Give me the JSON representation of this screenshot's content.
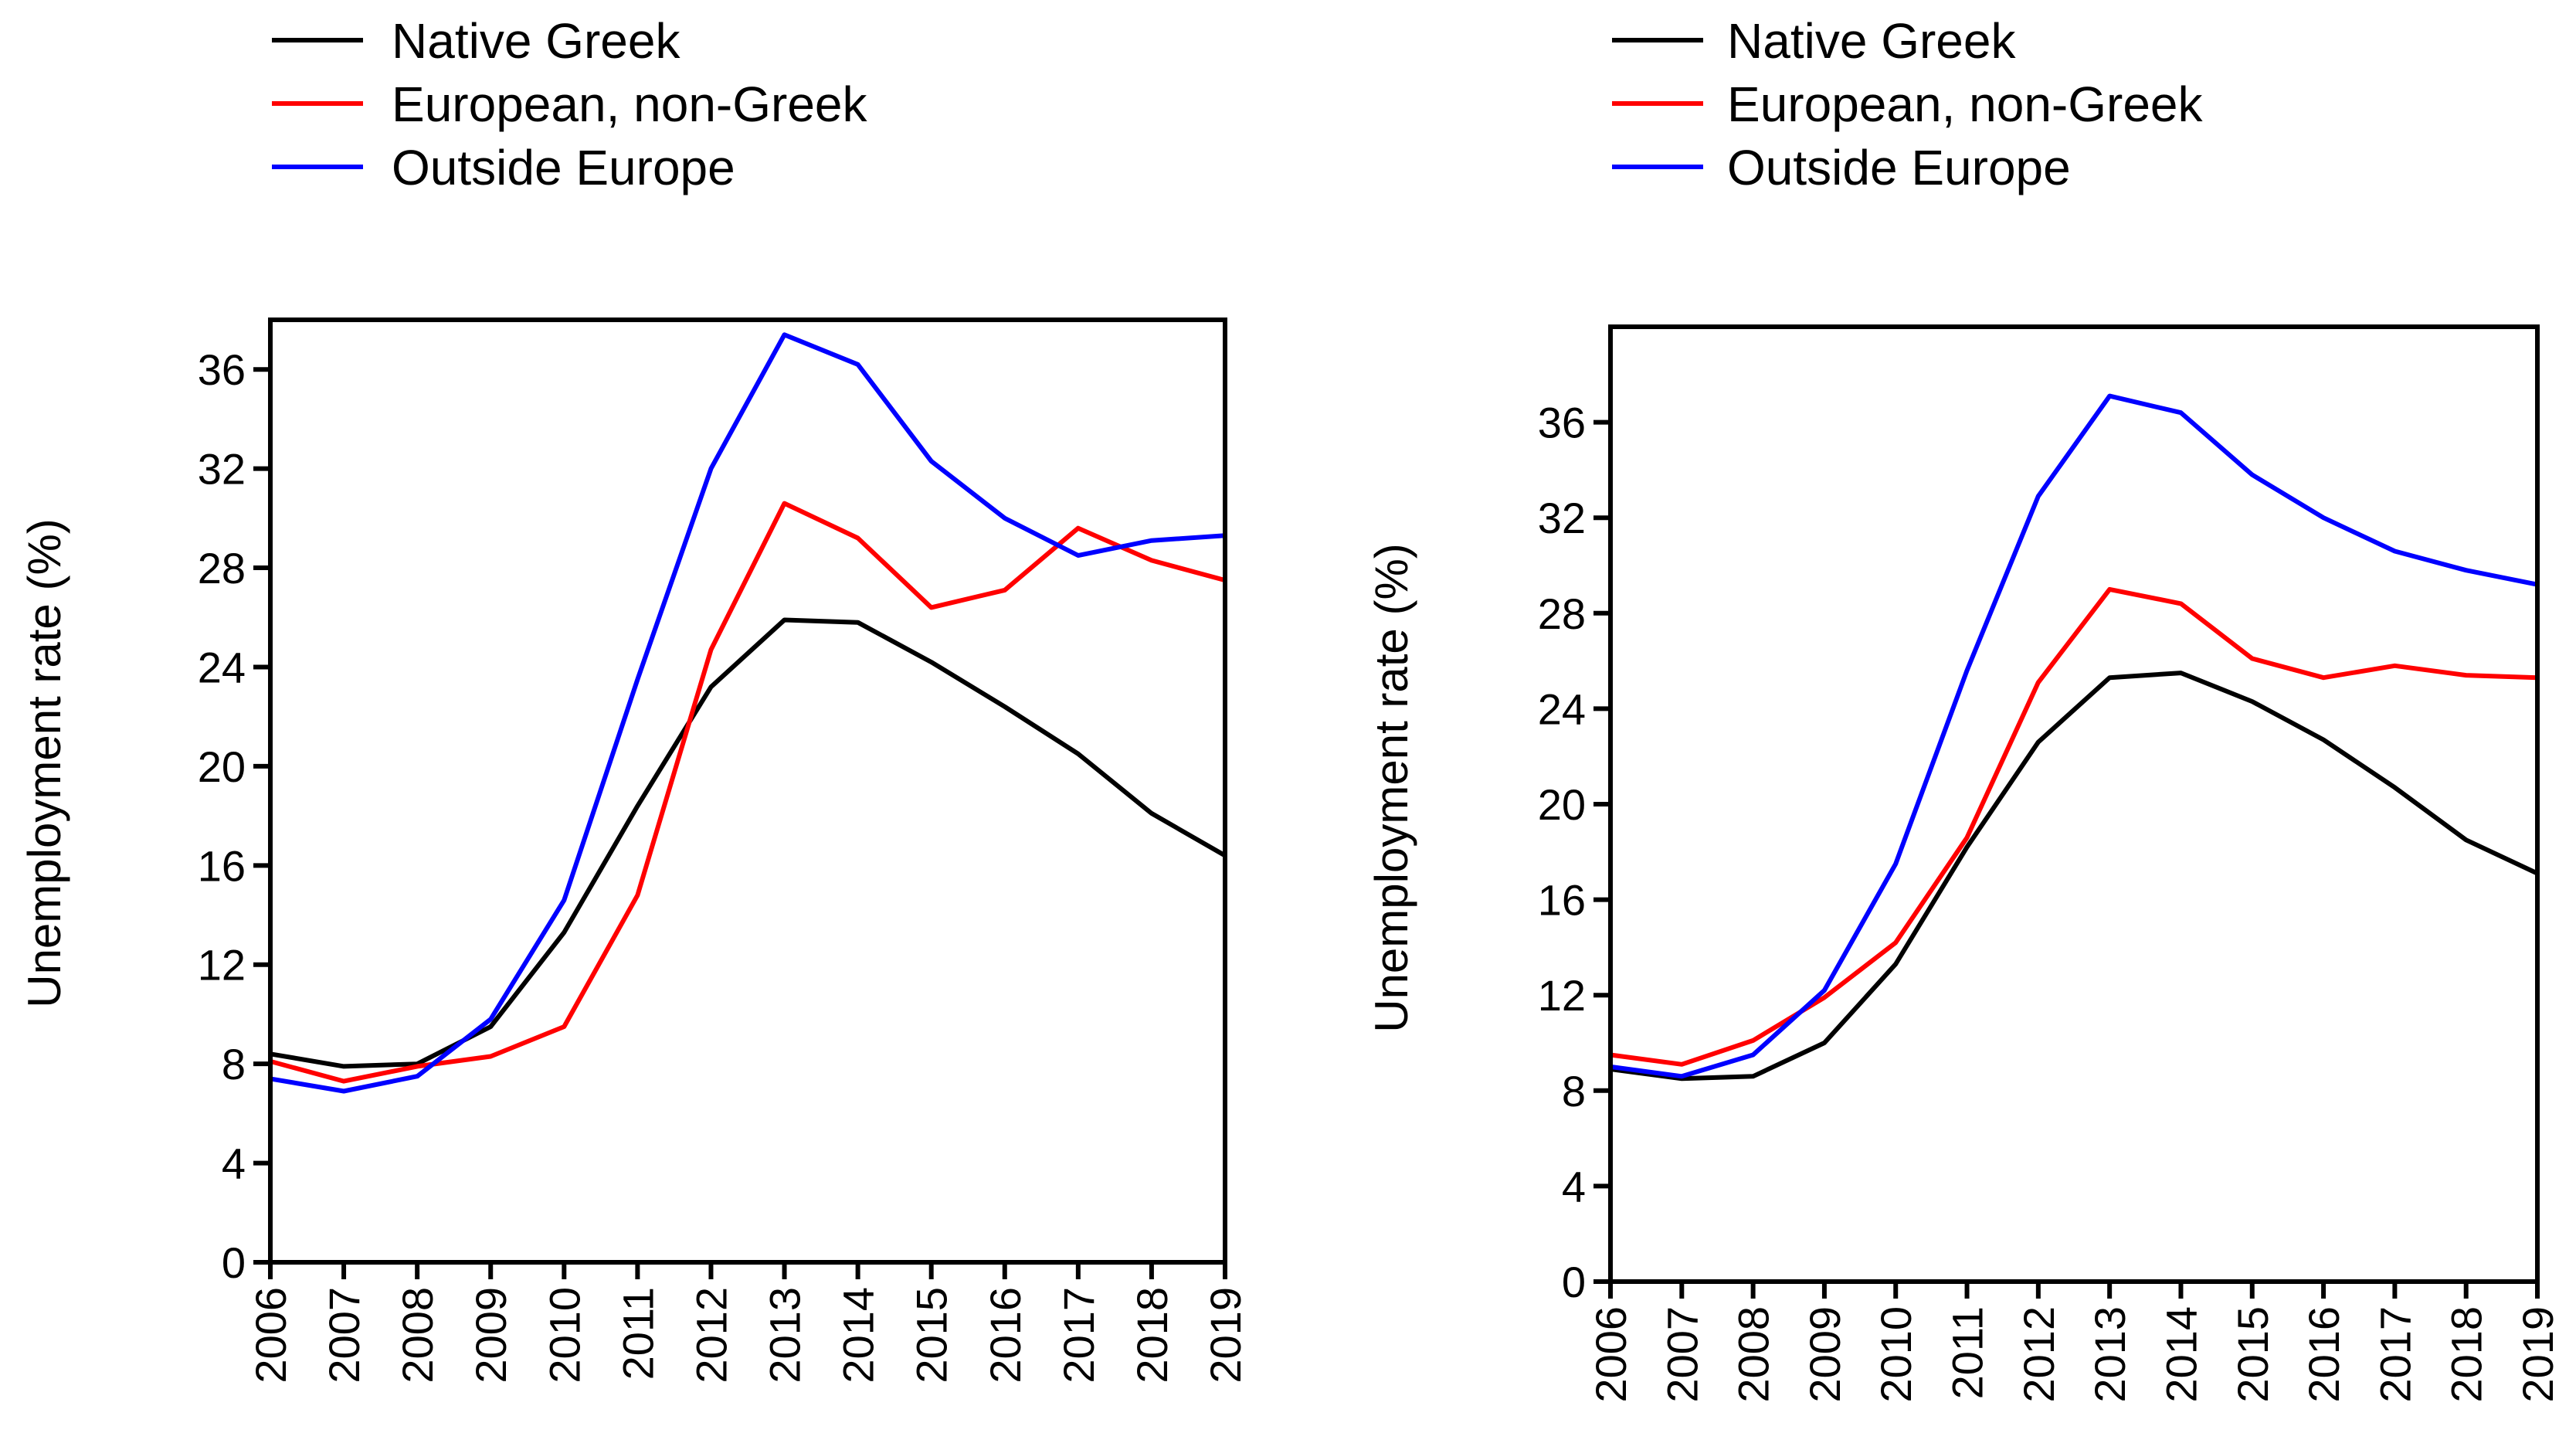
{
  "chart_data": [
    {
      "type": "line",
      "title": "",
      "xlabel": "",
      "ylabel": "Unemployment rate (%)",
      "x": [
        "2006",
        "2007",
        "2008",
        "2009",
        "2010",
        "2011",
        "2012",
        "2013",
        "2014",
        "2015",
        "2016",
        "2017",
        "2018",
        "2019"
      ],
      "yticks": [
        "0",
        "4",
        "8",
        "12",
        "16",
        "20",
        "24",
        "28",
        "32",
        "36"
      ],
      "ylim": [
        0,
        38
      ],
      "grid": false,
      "legend_position": "top-left, above plot",
      "series": [
        {
          "name": "Native Greek",
          "color": "#000000",
          "values": [
            8.4,
            7.9,
            8.0,
            9.5,
            13.3,
            18.4,
            23.2,
            25.9,
            25.8,
            24.2,
            22.4,
            20.5,
            18.1,
            16.4
          ]
        },
        {
          "name": "European, non-Greek",
          "color": "#ff0000",
          "values": [
            8.1,
            7.3,
            7.9,
            8.3,
            9.5,
            14.8,
            24.7,
            30.6,
            29.2,
            26.4,
            27.1,
            29.6,
            28.3,
            27.5
          ]
        },
        {
          "name": "Outside Europe",
          "color": "#0000ff",
          "values": [
            7.4,
            6.9,
            7.5,
            9.8,
            14.6,
            23.5,
            32.0,
            37.4,
            36.2,
            32.3,
            30.0,
            28.5,
            29.1,
            29.3
          ]
        }
      ]
    },
    {
      "type": "line",
      "title": "",
      "xlabel": "",
      "ylabel": "Unemployment rate (%)",
      "x": [
        "2006",
        "2007",
        "2008",
        "2009",
        "2010",
        "2011",
        "2012",
        "2013",
        "2014",
        "2015",
        "2016",
        "2017",
        "2018",
        "2019"
      ],
      "yticks": [
        "0",
        "4",
        "8",
        "12",
        "16",
        "20",
        "24",
        "28",
        "32",
        "36"
      ],
      "ylim": [
        0,
        40
      ],
      "grid": false,
      "legend_position": "top-left, above plot",
      "series": [
        {
          "name": "Native Greek",
          "color": "#000000",
          "values": [
            8.9,
            8.5,
            8.6,
            10.0,
            13.3,
            18.2,
            22.6,
            25.3,
            25.5,
            24.3,
            22.7,
            20.7,
            18.5,
            17.1
          ]
        },
        {
          "name": "European, non-Greek",
          "color": "#ff0000",
          "values": [
            9.5,
            9.1,
            10.1,
            11.9,
            14.2,
            18.6,
            25.1,
            29.0,
            28.4,
            26.1,
            25.3,
            25.8,
            25.4,
            25.3
          ]
        },
        {
          "name": "Outside Europe",
          "color": "#0000ff",
          "values": [
            9.0,
            8.6,
            9.5,
            12.2,
            17.5,
            25.6,
            32.9,
            37.1,
            36.4,
            33.8,
            32.0,
            30.6,
            29.8,
            29.2
          ]
        }
      ]
    }
  ]
}
